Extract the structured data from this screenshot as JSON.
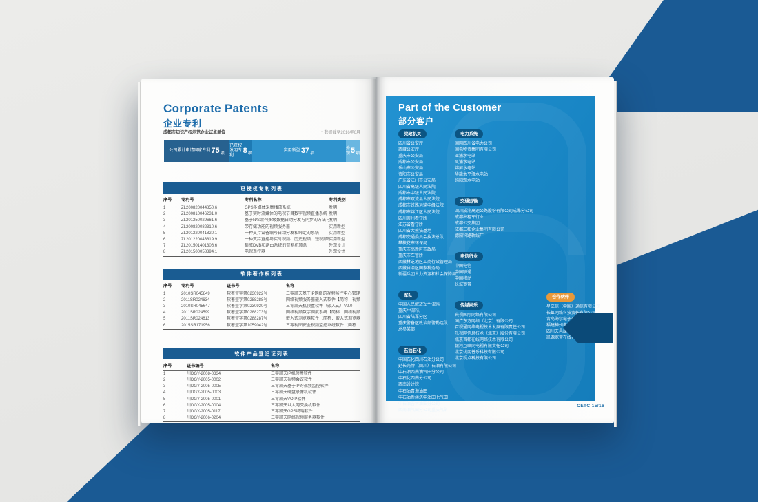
{
  "colors": {
    "background_blue": "#1a5a94",
    "panel_blue": "#1a86c5",
    "badge_blue": "#0b5583",
    "badge_orange": "#e8993a",
    "title_blue": "#1d6cab",
    "table_header_blue": "#1a5c92"
  },
  "left_page": {
    "title_en": "Corporate Patents",
    "title_zh": "企业专利",
    "subtitle": "成都市知识产权示范企业试点单位",
    "note": "* 数据截至2016年6月",
    "stats": [
      {
        "label": "公司累计申请国家专利",
        "value": "75",
        "unit": "项",
        "style": "width:33.5%;background:#27618f"
      },
      {
        "label": "已获权\n发明专利",
        "value": "8",
        "unit": "项",
        "style": "width:11.5%;background:#1e7ab4"
      },
      {
        "label": "实用新型",
        "value": "37",
        "unit": "项",
        "style": "width:48%;background:#2f93cd"
      },
      {
        "label": "外观",
        "value": "5",
        "unit": "项",
        "style": "width:7%;background:#6ab7e1"
      }
    ],
    "tables": [
      {
        "title": "已授权专利列表",
        "grid": "grid-template-columns:26px 92px 1fr 46px",
        "columns": [
          "序号",
          "专利号",
          "专利名称",
          "专利类别"
        ],
        "rows": [
          [
            "1",
            "ZL200820044850.6",
            "GPS多媒体采集播放系统",
            "发明"
          ],
          [
            "2",
            "ZL200810046231.0",
            "基于实时流媒体的电视节目数字视频直播系统",
            "发明"
          ],
          [
            "3",
            "ZL201250029661.6",
            "基于N/S架构多级数据自动分发与同步的方法与系统",
            "发明"
          ],
          [
            "4",
            "ZL200820082310.6",
            "带存储功能的视频服务器",
            "实用新型"
          ],
          [
            "5",
            "ZL201220041820.1",
            "一种支持设备编号自动分发和绑定的系统",
            "实用新型"
          ],
          [
            "6",
            "ZL201220043819.9",
            "一种支持直播与实时视频、历史视频、短视频联动的系统",
            "实用新型"
          ],
          [
            "7",
            "ZL201501401306.6",
            "集成DVB和路由系统的智能机顶盒",
            "外观设计"
          ],
          [
            "8",
            "ZL201500058394.1",
            "电视遥控器",
            "外观设计"
          ]
        ]
      },
      {
        "title": "软件著作权列表",
        "grid": "grid-template-columns:26px 66px 86px 1fr",
        "columns": [
          "序号",
          "专利号",
          "证书号",
          "名称"
        ],
        "rows": [
          [
            "1",
            "2010SR045849",
            "软著登字第0230922号",
            "三零凯天基于IP网络的视频监控中心管理软件V1.4"
          ],
          [
            "2",
            "2011SR024634",
            "软著登字第0288288号",
            "网络视频服务器嵌入式软件【简称：视频服务器软件】V1.0"
          ],
          [
            "3",
            "2010SR045647",
            "软著登字第0230920号",
            "三零凯天机顶盒软件（嵌入式）V2.0"
          ],
          [
            "4",
            "2011SR024599",
            "软著登字第0288273号",
            "网络视频数字调度系统【简称：网络视频调度系统】V1.0"
          ],
          [
            "5",
            "2011SR024613",
            "软著登字第0288287号",
            "嵌入式浏览器软件【简称：嵌入式浏览器】V1.0"
          ],
          [
            "6",
            "2015SR171956",
            "软著登字第1059042号",
            "三零视图安全视频监控系统软件【简称：安全视频监控软件】V2.0"
          ]
        ]
      },
      {
        "title": "软件产品登记证列表",
        "grid": "grid-template-columns:34px 122px 1fr",
        "columns": [
          "序号",
          "证书编号",
          "名称"
        ],
        "rows": [
          [
            "1",
            "川DGY-2008-0334",
            "三零凯天IP机顶盒软件"
          ],
          [
            "2",
            "川DGY-2005-0002",
            "三零凯天视频会议软件"
          ],
          [
            "3",
            "川DGY-2005-0005",
            "三零凯天基于IP的视频监控软件"
          ],
          [
            "4",
            "川DGY-2005-0003",
            "三零凯天硬盘录像机软件"
          ],
          [
            "5",
            "川DGY-2005-0001",
            "三零凯天VOIP软件"
          ],
          [
            "6",
            "川DGY-2005-0004",
            "三零凯天以太网交换机软件"
          ],
          [
            "7",
            "川DGY-2005-0117",
            "三零凯天GPS终端软件"
          ],
          [
            "8",
            "川DGY-2006-0204",
            "三零凯天网络视频服务器软件"
          ]
        ]
      }
    ]
  },
  "right_page": {
    "title_en": "Part of the Customer",
    "title_zh": "部分客户",
    "footer": "CETC 15/16",
    "columns": [
      {
        "sections": [
          {
            "badge": "党政机关",
            "items": [
              "四川省公安厅",
              "西藏公安厅",
              "重庆市公安局",
              "成都市公安局",
              "乐山市公安局",
              "资阳市公安局",
              "广东省江门市公安局",
              "四川省高级人民法院",
              "成都市中级人民法院",
              "成都市双流县人民法院",
              "成都市铁路运输中级法院",
              "成都市锦江区人民法院",
              "四川崇州看守所",
              "江苏省看守所",
              "四川省大熊猫基地",
              "成都交通委员会执法总队",
              "攀枝花市环保局",
              "重庆市高新区市政局",
              "重庆市车管所",
              "西藏林芝地区工商行政管理局",
              "西藏自治区国家税务局",
              "新疆兵团人力资源和社会保障局"
            ]
          },
          {
            "badge": "军队",
            "items": [
              "中国人民解放军***部队",
              "重庆***部队",
              "四川省陆军分区",
              "重庆警备区政治部警勤连队",
              "总参某部"
            ]
          },
          {
            "badge": "石油石化",
            "items": [
              "中国石化四川石油分公司",
              "延长壳牌（四川）石油有限公司",
              "中石油西南油气田分公司",
              "中石化西南分公司",
              "西南设计院",
              "中石油青海油田",
              "中石油新疆塔中油田七气田",
              "中石油吉林油田分公司",
              "西南油气田分公司重庆气矿"
            ]
          }
        ]
      },
      {
        "sections": [
          {
            "badge": "电力系统",
            "items": [
              "国网四川省电力公司",
              "国电物资集团有限公司",
              "亚浦水电站",
              "风浦水电站",
              "锦屏水电站",
              "华能太平驿水电站",
              "纯阳观水电站"
            ]
          },
          {
            "badge": "交通运输",
            "items": [
              "四川成渝高速公路股份有限公司成雅分公司",
              "成都出租车行业",
              "成都公交集团",
              "成都三和企业集团有限公司",
              "德阳科路轨线厂"
            ]
          },
          {
            "badge": "电信行业",
            "items": [
              "中国电信",
              "中国联通",
              "中国移动",
              "长城宽带"
            ]
          },
          {
            "badge": "传媒娱乐",
            "items": [
              "央视国际网络有限公司",
              "国广东方网络（北京）有限公司",
              "百视通网络电视技术发展有限责任公司",
              "乐视网信息技术（北京）股份有限公司",
              "北京首都在线网络技术有限公司",
              "银河互联网电视有限责任公司",
              "北京优朋普乐科技有限公司",
              "北京视点科技有限公司"
            ]
          }
        ]
      },
      {
        "sections": [
          {
            "badge": "合作伙伴",
            "badge_style": "background:#e8993a",
            "items": [
              "星立信（中国）通信有限公司",
              "长虹网络科技责任有限公司",
              "青岛海尔电子有限公司",
              "福建神州电子股份有限公司",
              "四川天邑康和通信股份有限公司",
              "凯源宽带在线有限公司"
            ]
          }
        ]
      }
    ]
  }
}
